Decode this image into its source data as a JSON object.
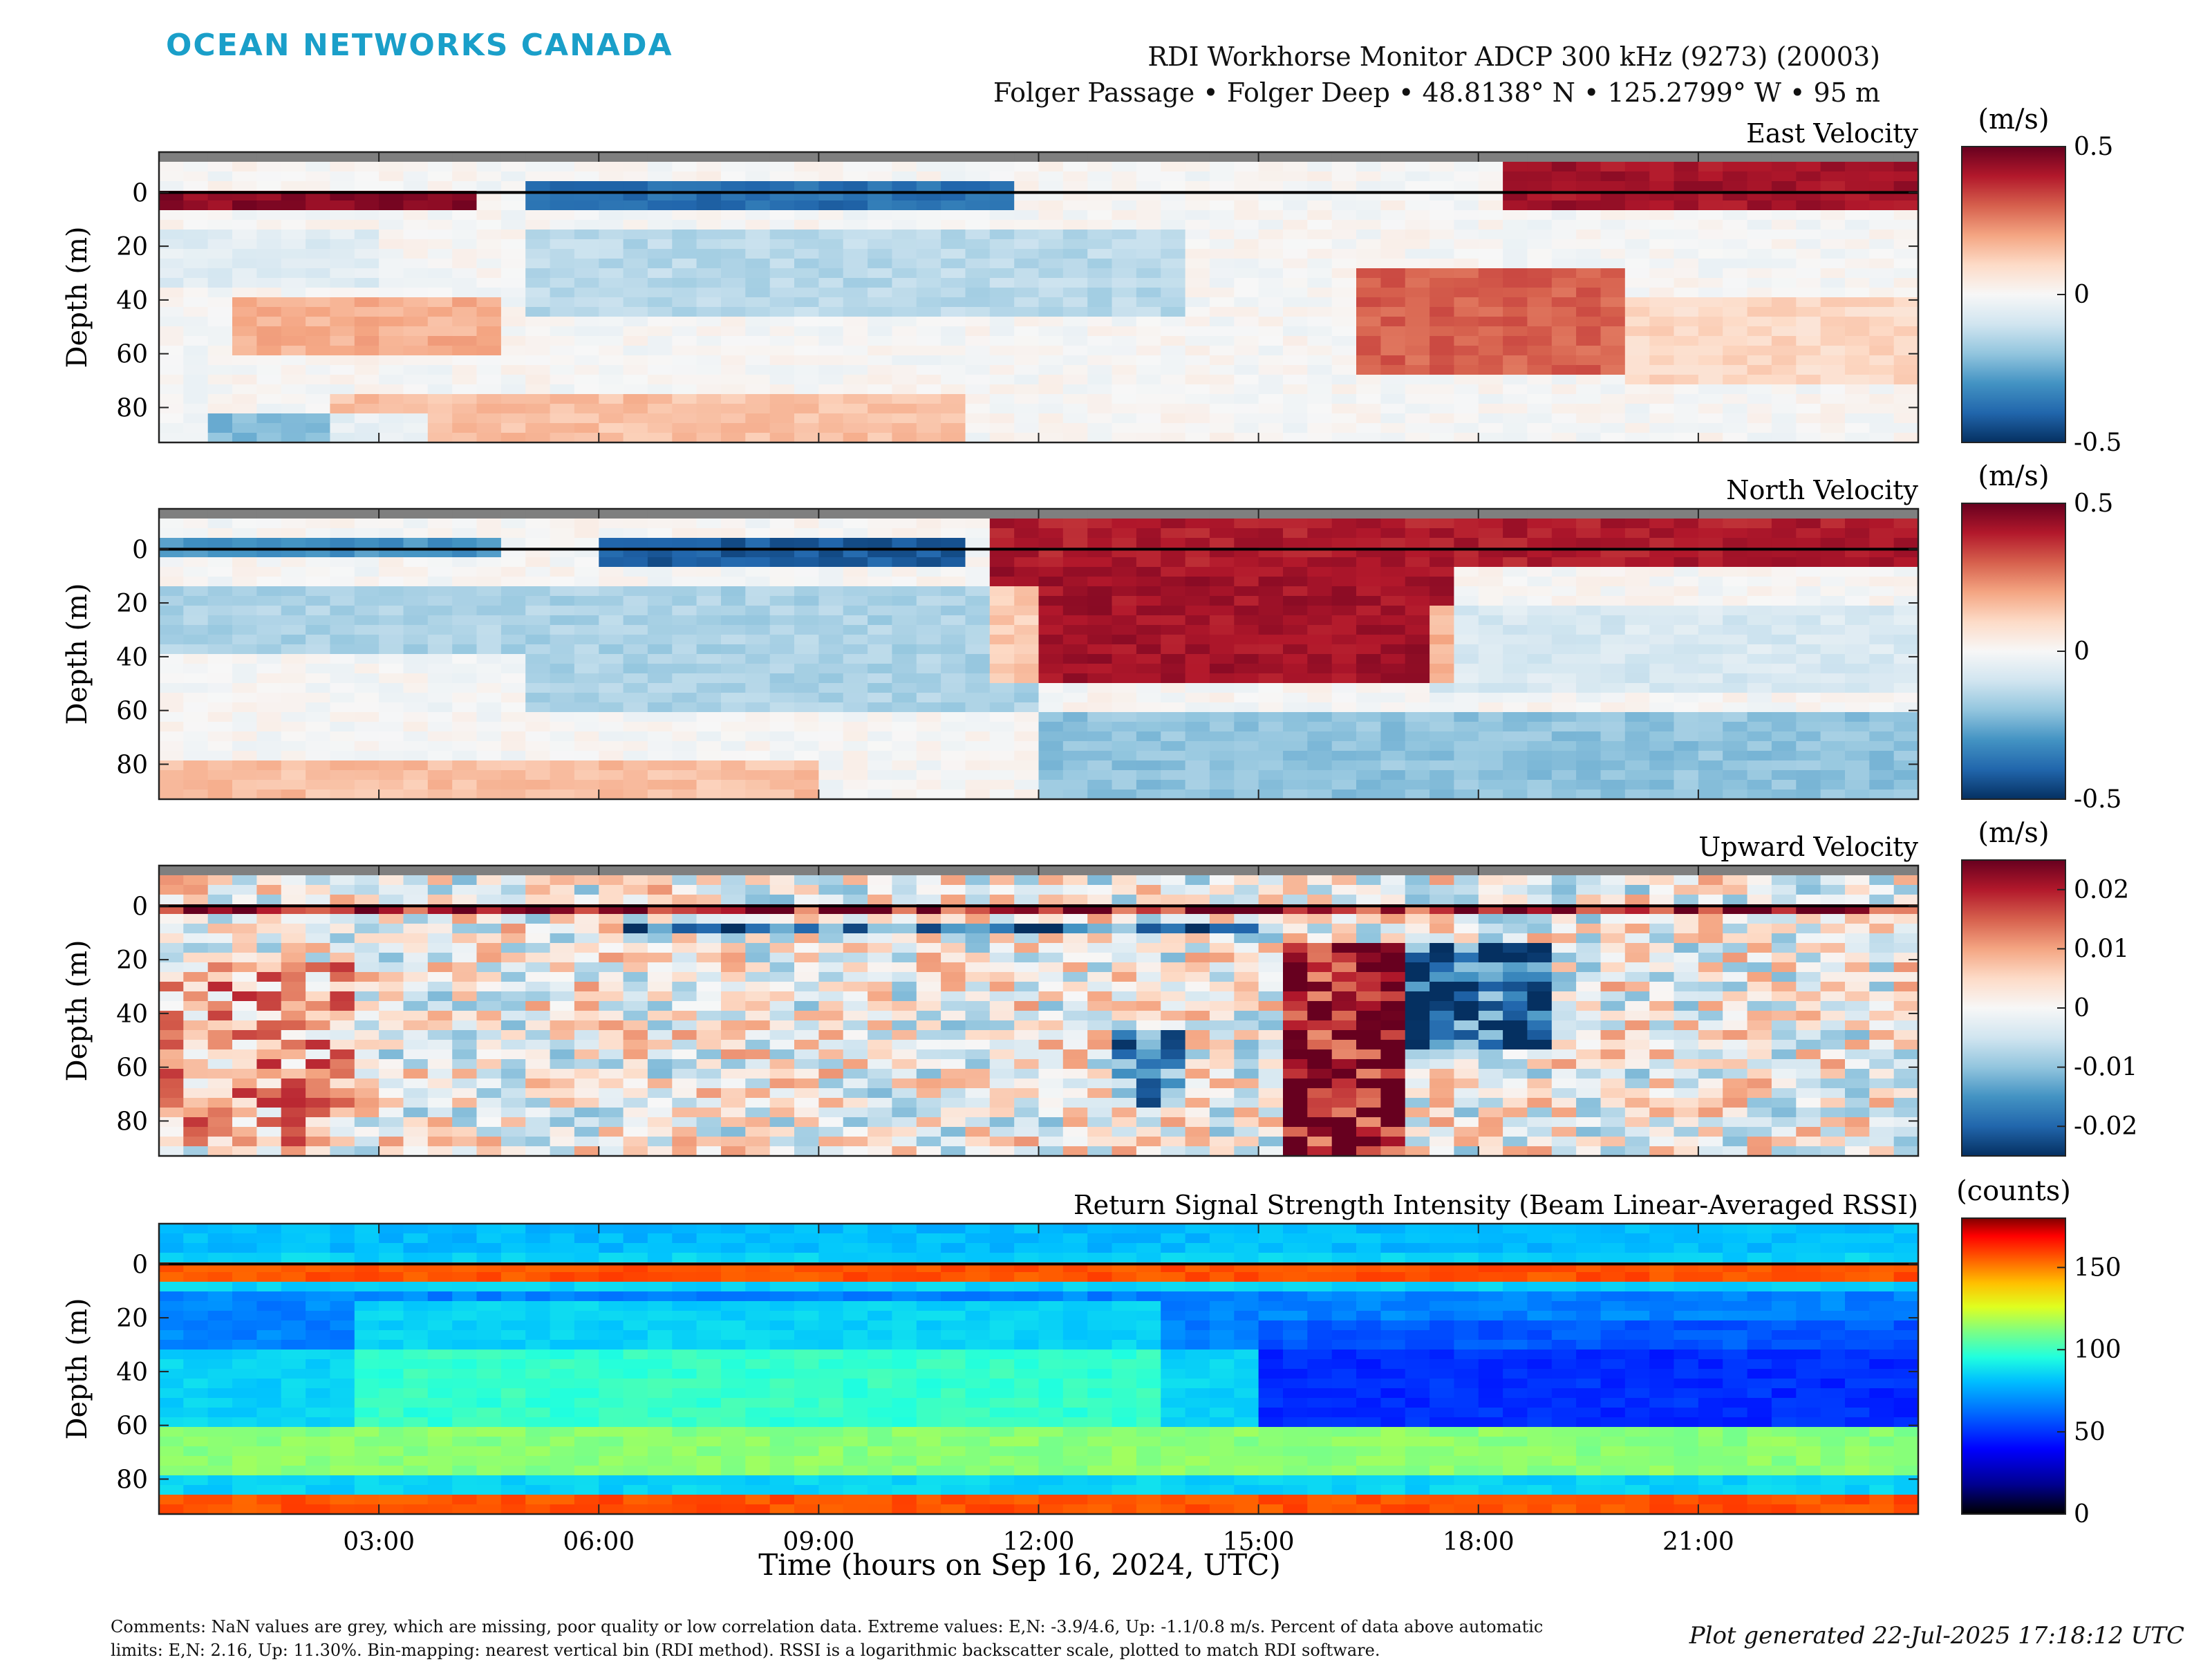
{
  "brand": "OCEAN NETWORKS CANADA",
  "header": {
    "instrument": "RDI Workhorse Monitor ADCP 300 kHz (9273) (20003)",
    "location": "Folger Passage • Folger Deep • 48.8138° N • 125.2799° W • 95 m"
  },
  "xlabel": "Time (hours on Sep 16, 2024, UTC)",
  "x_tick_labels": [
    "03:00",
    "06:00",
    "09:00",
    "12:00",
    "15:00",
    "18:00",
    "21:00"
  ],
  "comments": "Comments: NaN values are grey, which are missing, poor quality or low correlation data. Extreme values: E,N: -3.9/4.6, Up: -1.1/0.8 m/s. Percent of data above automatic limits: E,N: 2.16, Up: 11.30%. Bin-mapping: nearest vertical bin (RDI method). RSSI is a logarithmic backscatter scale, plotted to match RDI software.",
  "generated": "Plot generated 22-Jul-2025 17:18:12 UTC",
  "colors": {
    "brand": "#1a9fc9",
    "nan_grey": "#7f7f7f",
    "diverging": [
      "#053061",
      "#2166ac",
      "#4393c3",
      "#92c5de",
      "#d1e5f0",
      "#f7f7f7",
      "#fddbc7",
      "#f4a582",
      "#d6604d",
      "#b2182b",
      "#67001f"
    ],
    "jet": [
      "#000000",
      "#00008f",
      "#0000ff",
      "#0060ff",
      "#00c0ff",
      "#20ffdf",
      "#80ff80",
      "#dfff20",
      "#ffc000",
      "#ff6000",
      "#ff0000",
      "#800000"
    ]
  },
  "chart_data": [
    {
      "type": "heatmap",
      "title": "East Velocity",
      "ylabel": "Depth (m)",
      "xlim": [
        0,
        24
      ],
      "ylim": [
        93,
        -15
      ],
      "y_ticks": [
        0,
        20,
        40,
        60,
        80
      ],
      "colorbar": {
        "unit": "(m/s)",
        "scale": "diverging",
        "range": [
          -0.5,
          0.5
        ],
        "ticks": [
          -0.5,
          0,
          0.5
        ],
        "tick_labels": [
          "-0.5",
          "0",
          "0.5"
        ]
      },
      "nan_above_depth": -12,
      "surface_line_depth": 0,
      "features": [
        {
          "t": [
            0.0,
            4.2
          ],
          "d": [
            -2,
            5
          ],
          "v": 0.45
        },
        {
          "t": [
            5.0,
            11.5
          ],
          "d": [
            -4,
            6
          ],
          "v": -0.38
        },
        {
          "t": [
            18.2,
            24.0
          ],
          "d": [
            -10,
            6
          ],
          "v": 0.42
        },
        {
          "t": [
            0.0,
            3.0
          ],
          "d": [
            15,
            35
          ],
          "v": -0.06
        },
        {
          "t": [
            5.0,
            14.0
          ],
          "d": [
            15,
            45
          ],
          "v": -0.14
        },
        {
          "t": [
            1.0,
            4.5
          ],
          "d": [
            40,
            62
          ],
          "v": 0.18
        },
        {
          "t": [
            0.8,
            3.8
          ],
          "d": [
            82,
            93
          ],
          "v": -0.22
        },
        {
          "t": [
            2.5,
            11.0
          ],
          "d": [
            75,
            93
          ],
          "v": 0.15
        },
        {
          "t": [
            16.5,
            20.0
          ],
          "d": [
            28,
            68
          ],
          "v": 0.3
        },
        {
          "t": [
            20.0,
            24.0
          ],
          "d": [
            40,
            70
          ],
          "v": 0.1
        }
      ]
    },
    {
      "type": "heatmap",
      "title": "North Velocity",
      "ylabel": "Depth (m)",
      "xlim": [
        0,
        24
      ],
      "ylim": [
        93,
        -15
      ],
      "y_ticks": [
        0,
        20,
        40,
        60,
        80
      ],
      "colorbar": {
        "unit": "(m/s)",
        "scale": "diverging",
        "range": [
          -0.5,
          0.5
        ],
        "ticks": [
          -0.5,
          0,
          0.5
        ],
        "tick_labels": [
          "-0.5",
          "0",
          "0.5"
        ]
      },
      "nan_above_depth": -12,
      "surface_line_depth": 0,
      "features": [
        {
          "t": [
            0.0,
            4.5
          ],
          "d": [
            -3,
            4
          ],
          "v": -0.3
        },
        {
          "t": [
            6.0,
            11.0
          ],
          "d": [
            -5,
            5
          ],
          "v": -0.42
        },
        {
          "t": [
            11.3,
            24.0
          ],
          "d": [
            -10,
            5
          ],
          "v": 0.4
        },
        {
          "t": [
            11.5,
            17.5
          ],
          "d": [
            5,
            50
          ],
          "v": 0.42
        },
        {
          "t": [
            0.0,
            12.0
          ],
          "d": [
            15,
            60
          ],
          "v": -0.16
        },
        {
          "t": [
            0.0,
            5.0
          ],
          "d": [
            40,
            60
          ],
          "v": 0.15
        },
        {
          "t": [
            12.0,
            24.0
          ],
          "d": [
            60,
            93
          ],
          "v": -0.2
        },
        {
          "t": [
            0.0,
            9.0
          ],
          "d": [
            80,
            93
          ],
          "v": 0.15
        },
        {
          "t": [
            17.5,
            24.0
          ],
          "d": [
            20,
            55
          ],
          "v": -0.08
        }
      ]
    },
    {
      "type": "heatmap",
      "title": "Upward Velocity",
      "ylabel": "Depth (m)",
      "xlim": [
        0,
        24
      ],
      "ylim": [
        93,
        -15
      ],
      "y_ticks": [
        0,
        20,
        40,
        60,
        80
      ],
      "colorbar": {
        "unit": "(m/s)",
        "scale": "diverging",
        "range": [
          -0.025,
          0.025
        ],
        "ticks": [
          -0.02,
          -0.01,
          0,
          0.01,
          0.02
        ],
        "tick_labels": [
          "-0.02",
          "-0.01",
          "0",
          "0.01",
          "0.02"
        ]
      },
      "nan_above_depth": -12,
      "surface_line_depth": 0,
      "features": [
        {
          "t": [
            0.0,
            24.0
          ],
          "d": [
            -12,
            -2
          ],
          "v": 0.0
        },
        {
          "t": [
            0.0,
            24.0
          ],
          "d": [
            0,
            4
          ],
          "v": 0.022
        },
        {
          "t": [
            6.5,
            15.0
          ],
          "d": [
            5,
            10
          ],
          "v": -0.02
        },
        {
          "t": [
            15.3,
            17.0
          ],
          "d": [
            15,
            93
          ],
          "v": 0.022
        },
        {
          "t": [
            17.0,
            19.0
          ],
          "d": [
            15,
            55
          ],
          "v": -0.02
        },
        {
          "t": [
            13.0,
            14.0
          ],
          "d": [
            45,
            75
          ],
          "v": -0.015
        },
        {
          "t": [
            0.0,
            2.5
          ],
          "d": [
            20,
            90
          ],
          "v": 0.008
        }
      ]
    },
    {
      "type": "heatmap",
      "title": "Return Signal Strength Intensity (Beam Linear-Averaged RSSI)",
      "ylabel": "Depth (m)",
      "xlim": [
        0,
        24
      ],
      "ylim": [
        93,
        -15
      ],
      "y_ticks": [
        0,
        20,
        40,
        60,
        80
      ],
      "colorbar": {
        "unit": "(counts)",
        "scale": "jet",
        "range": [
          0,
          180
        ],
        "ticks": [
          0,
          50,
          100,
          150
        ],
        "tick_labels": [
          "0",
          "50",
          "100",
          "150"
        ]
      },
      "surface_line_depth": 0,
      "features": [
        {
          "t": [
            0.0,
            24.0
          ],
          "d": [
            -15,
            -5
          ],
          "v": 65
        },
        {
          "t": [
            0.0,
            24.0
          ],
          "d": [
            0,
            7
          ],
          "v": 150
        },
        {
          "t": [
            0.0,
            24.0
          ],
          "d": [
            10,
            30
          ],
          "v": 55
        },
        {
          "t": [
            2.8,
            13.5
          ],
          "d": [
            15,
            60
          ],
          "v": 85
        },
        {
          "t": [
            0.0,
            24.0
          ],
          "d": [
            60,
            80
          ],
          "v": 100
        },
        {
          "t": [
            0.0,
            24.0
          ],
          "d": [
            85,
            93
          ],
          "v": 150
        },
        {
          "t": [
            15.0,
            24.0
          ],
          "d": [
            20,
            60
          ],
          "v": 40
        }
      ]
    }
  ]
}
